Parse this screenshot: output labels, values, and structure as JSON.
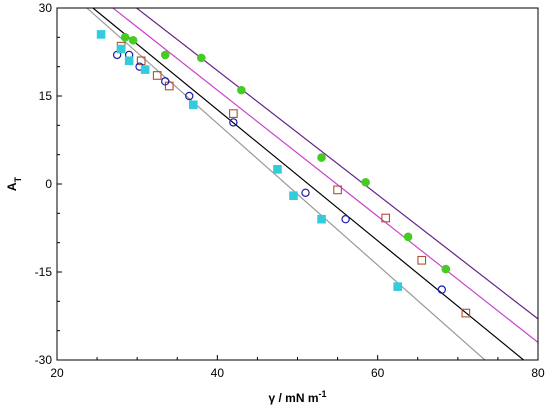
{
  "chart_data": {
    "type": "scatter",
    "xlabel": "γ / mN m",
    "xlabel_sup": "-1",
    "ylabel": "A",
    "ylabel_sub": "T",
    "xlim": [
      20,
      80
    ],
    "ylim": [
      -30,
      30
    ],
    "x_ticks": [
      20,
      40,
      60,
      80
    ],
    "y_ticks": [
      30,
      15,
      0,
      -15,
      -30
    ],
    "x_tick_labels": [
      "20",
      "40",
      "60",
      "80"
    ],
    "y_tick_labels": [
      "30",
      "15",
      "0",
      "-15",
      "-30"
    ],
    "grid": false,
    "legend": "none",
    "series": [
      {
        "marker": "filled-circle",
        "color": "#44cc22",
        "points": [
          [
            28.5,
            25
          ],
          [
            29.5,
            24.5
          ],
          [
            33.5,
            22
          ],
          [
            38,
            21.5
          ],
          [
            43,
            16
          ],
          [
            53,
            4.5
          ],
          [
            58.5,
            0.3
          ],
          [
            63.8,
            -9
          ],
          [
            68.5,
            -14.5
          ]
        ]
      },
      {
        "marker": "open-square",
        "color": "#b05030",
        "points": [
          [
            28,
            23.5
          ],
          [
            30.5,
            21
          ],
          [
            32.5,
            18.5
          ],
          [
            34,
            16.7
          ],
          [
            42,
            12
          ],
          [
            55,
            -1
          ],
          [
            61,
            -5.8
          ],
          [
            65.5,
            -13
          ],
          [
            71,
            -22
          ]
        ]
      },
      {
        "marker": "open-circle",
        "color": "#1a1aaa",
        "points": [
          [
            27.5,
            22
          ],
          [
            29,
            22
          ],
          [
            30.3,
            20
          ],
          [
            33.5,
            17.5
          ],
          [
            36.5,
            15
          ],
          [
            42,
            10.5
          ],
          [
            51,
            -1.5
          ],
          [
            56,
            -6
          ],
          [
            68,
            -18
          ]
        ]
      },
      {
        "marker": "filled-square",
        "color": "#33ccdd",
        "points": [
          [
            25.5,
            25.5
          ],
          [
            28,
            23
          ],
          [
            29,
            21
          ],
          [
            31,
            19.5
          ],
          [
            37,
            13.5
          ],
          [
            47.5,
            2.5
          ],
          [
            49.5,
            -2
          ],
          [
            53,
            -6
          ],
          [
            62.5,
            -17.5
          ]
        ]
      }
    ],
    "fit_lines": [
      {
        "color": "#662288",
        "x": [
          20,
          80
        ],
        "y": [
          40.5,
          -23
        ]
      },
      {
        "color": "#cc44cc",
        "x": [
          20,
          80
        ],
        "y": [
          37.5,
          -27
        ]
      },
      {
        "color": "#000000",
        "x": [
          20,
          80
        ],
        "y": [
          35,
          -32
        ]
      },
      {
        "color": "#999999",
        "x": [
          20,
          80
        ],
        "y": [
          34.5,
          -38
        ]
      }
    ]
  }
}
